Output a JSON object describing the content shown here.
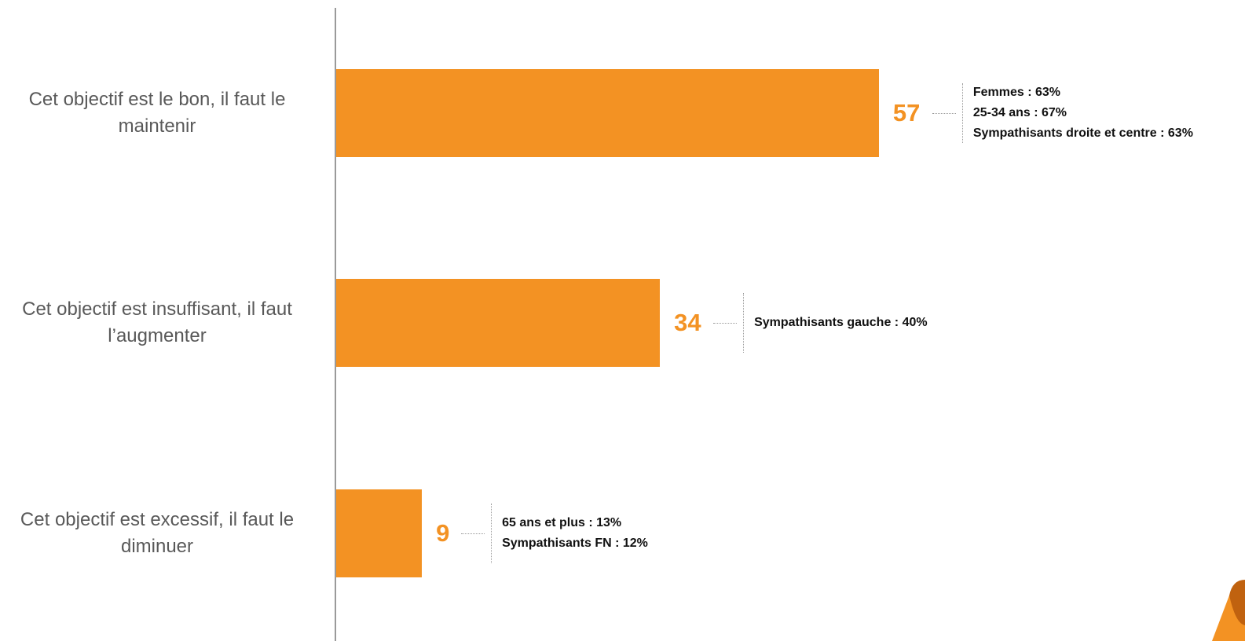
{
  "colors": {
    "bar": "#F39223",
    "value": "#F39223",
    "axis": "#9A9A9A",
    "category_text": "#595959",
    "note_text": "#111111",
    "logo_dark": "#C0620F"
  },
  "chart_data": {
    "type": "bar",
    "orientation": "horizontal",
    "categories": [
      "Cet objectif est le bon, il faut le maintenir",
      "Cet objectif est insuffisant, il faut l’augmenter",
      "Cet objectif est excessif, il faut le diminuer"
    ],
    "category_lines": [
      [
        "Cet objectif est le bon, il faut le",
        "maintenir"
      ],
      [
        "Cet objectif est insuffisant, il faut",
        "l’augmenter"
      ],
      [
        "Cet objectif est excessif, il faut le",
        "diminuer"
      ]
    ],
    "values": [
      57,
      34,
      9
    ],
    "value_labels": [
      "57",
      "34",
      "9"
    ],
    "xlim": [
      0,
      100
    ],
    "annotations": [
      [
        "Femmes : 63%",
        "25-34 ans : 67%",
        "Sympathisants droite et centre : 63%"
      ],
      [
        "Sympathisants gauche : 40%"
      ],
      [
        "65 ans et plus : 13%",
        "Sympathisants FN : 12%"
      ]
    ],
    "grid": false,
    "legend": "none"
  }
}
